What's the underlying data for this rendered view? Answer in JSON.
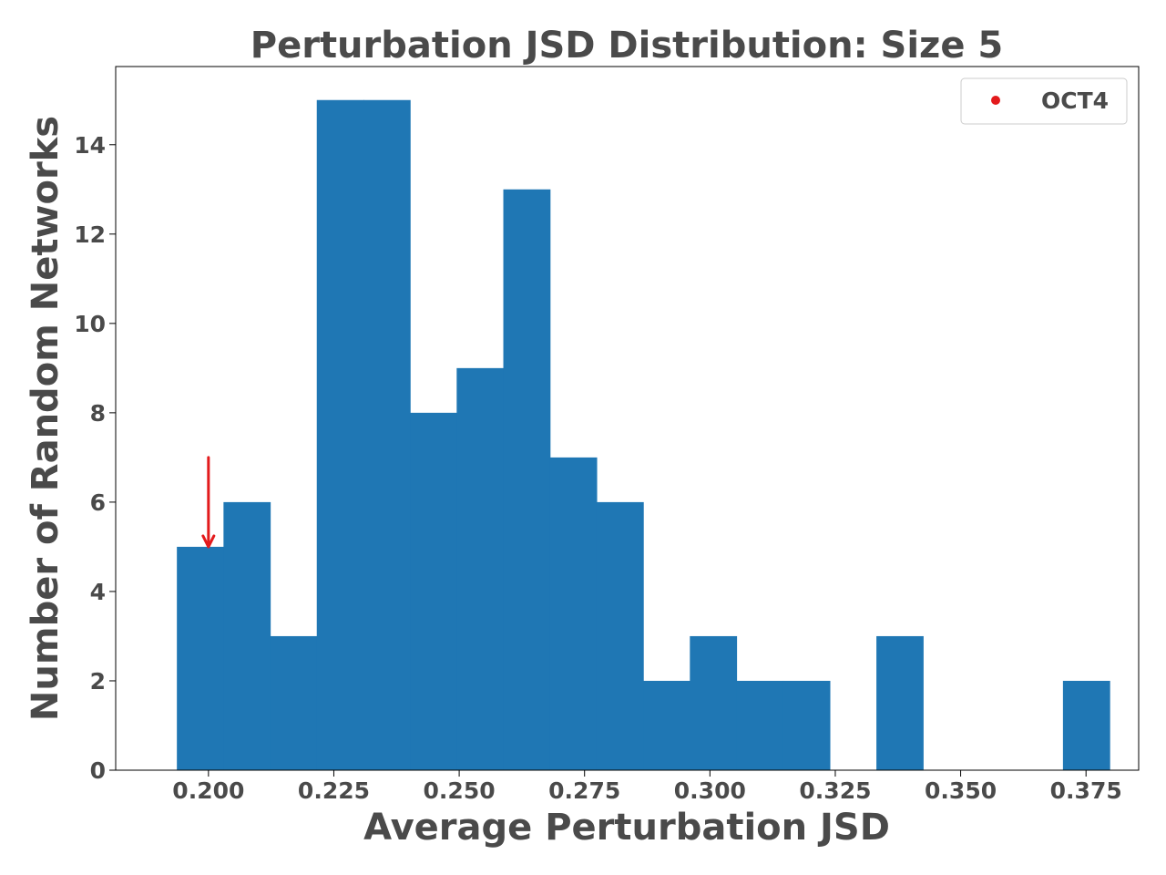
{
  "chart_data": {
    "type": "bar",
    "title": "Perturbation JSD Distribution: Size 5",
    "xlabel": "Average Perturbation JSD",
    "ylabel": "Number of Random Networks",
    "xlim": [
      0.1815,
      0.3855
    ],
    "ylim": [
      0,
      15.75
    ],
    "xticks": [
      "0.200",
      "0.225",
      "0.250",
      "0.275",
      "0.300",
      "0.325",
      "0.350",
      "0.375"
    ],
    "xtick_values": [
      0.2,
      0.225,
      0.25,
      0.275,
      0.3,
      0.325,
      0.35,
      0.375
    ],
    "yticks": [
      "0",
      "2",
      "4",
      "6",
      "8",
      "10",
      "12",
      "14"
    ],
    "ytick_values": [
      0,
      2,
      4,
      6,
      8,
      10,
      12,
      14
    ],
    "bar_color": "#1f77b4",
    "bins": [
      {
        "x0": 0.1937,
        "x1": 0.203,
        "count": 5
      },
      {
        "x0": 0.203,
        "x1": 0.2123,
        "count": 6
      },
      {
        "x0": 0.2123,
        "x1": 0.2216,
        "count": 3
      },
      {
        "x0": 0.2216,
        "x1": 0.2309,
        "count": 15
      },
      {
        "x0": 0.2309,
        "x1": 0.2402,
        "count": 15
      },
      {
        "x0": 0.2402,
        "x1": 0.2495,
        "count": 8
      },
      {
        "x0": 0.2495,
        "x1": 0.2588,
        "count": 9
      },
      {
        "x0": 0.2588,
        "x1": 0.2681,
        "count": 13
      },
      {
        "x0": 0.2681,
        "x1": 0.2774,
        "count": 7
      },
      {
        "x0": 0.2774,
        "x1": 0.2867,
        "count": 6
      },
      {
        "x0": 0.2867,
        "x1": 0.296,
        "count": 2
      },
      {
        "x0": 0.296,
        "x1": 0.3053,
        "count": 3
      },
      {
        "x0": 0.3053,
        "x1": 0.3146,
        "count": 2
      },
      {
        "x0": 0.3146,
        "x1": 0.3239,
        "count": 2
      },
      {
        "x0": 0.3239,
        "x1": 0.3332,
        "count": 0
      },
      {
        "x0": 0.3332,
        "x1": 0.3425,
        "count": 3
      },
      {
        "x0": 0.3425,
        "x1": 0.3518,
        "count": 0
      },
      {
        "x0": 0.3518,
        "x1": 0.3611,
        "count": 0
      },
      {
        "x0": 0.3611,
        "x1": 0.3704,
        "count": 0
      },
      {
        "x0": 0.3704,
        "x1": 0.3797,
        "count": 2
      }
    ],
    "marker": {
      "label": "OCT4",
      "color": "#e31a1c",
      "x": 0.2,
      "arrow_from_y": 7,
      "arrow_to_y": 5
    },
    "legend": {
      "position": "top-right",
      "entries": [
        "OCT4"
      ]
    },
    "grid": false
  }
}
